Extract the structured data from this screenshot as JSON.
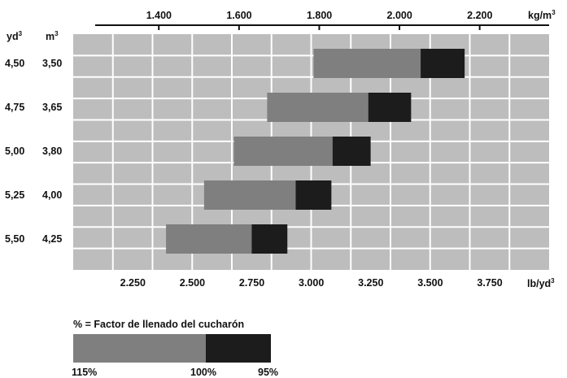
{
  "chart_data": {
    "type": "bar",
    "orientation": "horizontal-range",
    "top_axis": {
      "unit_base": "kg/m",
      "unit_exp": "3",
      "ticks": [
        "1.400",
        "1.600",
        "1.800",
        "2.000",
        "2.200"
      ],
      "tick_values": [
        1400,
        1600,
        1800,
        2000,
        2200
      ]
    },
    "bottom_axis": {
      "unit_base": "lb/yd",
      "unit_exp": "3",
      "ticks": [
        "2.250",
        "2.500",
        "2.750",
        "3.000",
        "3.250",
        "3.500",
        "3.750"
      ],
      "tick_values": [
        2250,
        2500,
        2750,
        3000,
        3250,
        3500,
        3750
      ],
      "range": [
        2000,
        4000
      ]
    },
    "left_columns": {
      "yd_base": "yd",
      "yd_exp": "3",
      "m_base": "m",
      "m_exp": "3"
    },
    "rows": [
      {
        "yd3": "4,50",
        "m3": "3,50",
        "start_115": 3010,
        "at_100": 3460,
        "end_95": 3645
      },
      {
        "yd3": "4,75",
        "m3": "3,65",
        "start_115": 2815,
        "at_100": 3240,
        "end_95": 3420
      },
      {
        "yd3": "5,00",
        "m3": "3,80",
        "start_115": 2675,
        "at_100": 3090,
        "end_95": 3250
      },
      {
        "yd3": "5,25",
        "m3": "4,00",
        "start_115": 2550,
        "at_100": 2935,
        "end_95": 3085
      },
      {
        "yd3": "5,50",
        "m3": "4,25",
        "start_115": 2390,
        "at_100": 2750,
        "end_95": 2900
      }
    ],
    "grid": true,
    "colors": {
      "plot_bg": "#bdbdbd",
      "grid": "#ffffff",
      "fill_115_100": "#7f7f7f",
      "fill_100_95": "#1c1c1c"
    }
  },
  "legend": {
    "title": "% = Factor de llenado del cucharón",
    "label_115": "115%",
    "label_100": "100%",
    "label_95": "95%"
  }
}
